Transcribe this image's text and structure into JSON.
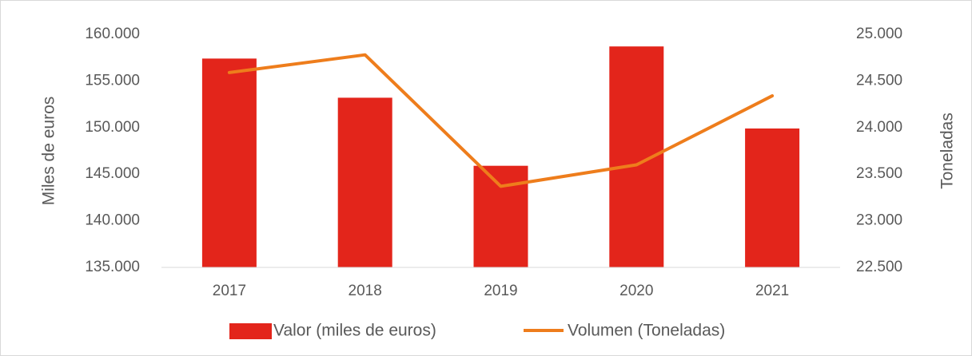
{
  "chart_data": {
    "type": "bar+line",
    "categories": [
      "2017",
      "2018",
      "2019",
      "2020",
      "2021"
    ],
    "y_label": "Miles de euros",
    "y2_label": "Toneladas",
    "series": [
      {
        "name": "Valor (miles de euros)",
        "type": "bar",
        "color": "#e3251b",
        "values": [
          157400,
          153200,
          145900,
          158700,
          149900
        ]
      },
      {
        "name": "Volumen (Toneladas)",
        "type": "line",
        "axis": "y2",
        "color": "#ee7d1c",
        "values": [
          24590,
          24780,
          23370,
          23600,
          24340
        ]
      }
    ],
    "ylim": [
      135000,
      160000
    ],
    "yticks": [
      {
        "value": 135000,
        "label": "135.000"
      },
      {
        "value": 140000,
        "label": "140.000"
      },
      {
        "value": 145000,
        "label": "145.000"
      },
      {
        "value": 150000,
        "label": "150.000"
      },
      {
        "value": 155000,
        "label": "155.000"
      },
      {
        "value": 160000,
        "label": "160.000"
      }
    ],
    "y2lim": [
      22500,
      25000
    ],
    "y2ticks": [
      {
        "value": 22500,
        "label": "22.500"
      },
      {
        "value": 23000,
        "label": "23.000"
      },
      {
        "value": 23500,
        "label": "23.500"
      },
      {
        "value": 24000,
        "label": "24.000"
      },
      {
        "value": 24500,
        "label": "24.500"
      },
      {
        "value": 25000,
        "label": "25.000"
      }
    ],
    "grid": false,
    "legend": "bottom"
  }
}
